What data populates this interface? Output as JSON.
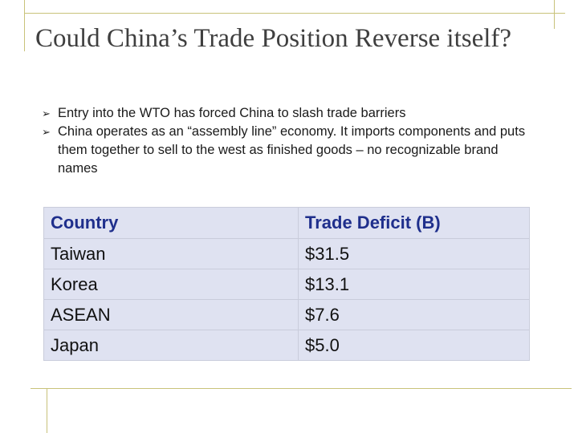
{
  "slide": {
    "title": "Could China’s Trade Position Reverse itself?",
    "bullets": [
      "Entry into the WTO has forced China to slash trade barriers",
      "China operates as an “assembly line” economy. It imports components and puts them together to sell to the west as finished goods – no recognizable brand names"
    ],
    "bullet_icon": "arrow-bullet-icon"
  },
  "table": {
    "headers": [
      "Country",
      "Trade Deficit (B)"
    ],
    "rows": [
      [
        "Taiwan",
        "$31.5"
      ],
      [
        "Korea",
        "$13.1"
      ],
      [
        "ASEAN",
        "$7.6"
      ],
      [
        "Japan",
        "$5.0"
      ]
    ],
    "header_color": "#1f2f8c",
    "fill_color": "#dfe2f1"
  }
}
